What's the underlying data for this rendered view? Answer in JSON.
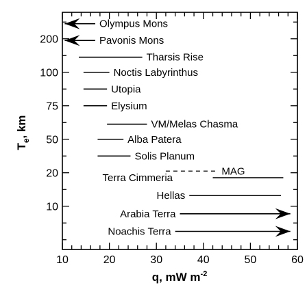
{
  "chart_data": {
    "type": "range-bar",
    "xlabel": "q, mW m",
    "xlabel_sup": "-2",
    "ylabel": "T",
    "ylabel_sub": "e",
    "ylabel_unit": ", km",
    "xlim": [
      10,
      60
    ],
    "x_ticks": [
      10,
      20,
      30,
      40,
      50,
      60
    ],
    "y_ticks": [
      {
        "row": 1.5,
        "label": "200"
      },
      {
        "row": 3.5,
        "label": "100"
      },
      {
        "row": 5.5,
        "label": "75"
      },
      {
        "row": 7.5,
        "label": "50"
      },
      {
        "row": 9.5,
        "label": "20"
      },
      {
        "row": 11.5,
        "label": "10"
      }
    ],
    "rows": [
      {
        "name": "Olympus Mons",
        "row": 0.6,
        "q_min": 10.5,
        "q_max": 17,
        "arrow": "left"
      },
      {
        "name": "Pavonis Mons",
        "row": 1.6,
        "q_min": 10.5,
        "q_max": 17,
        "arrow": "left"
      },
      {
        "name": "Tharsis Rise",
        "row": 2.6,
        "q_min": 13.5,
        "q_max": 27,
        "arrow": "none"
      },
      {
        "name": "Noctis  Labyrinthus",
        "row": 3.5,
        "q_min": 14.5,
        "q_max": 20,
        "arrow": "none"
      },
      {
        "name": "Utopia",
        "row": 4.5,
        "q_min": 14.5,
        "q_max": 19.5,
        "arrow": "none"
      },
      {
        "name": "Elysium",
        "row": 5.5,
        "q_min": 14.5,
        "q_max": 19.5,
        "arrow": "none"
      },
      {
        "name": "VM/Melas Chasma",
        "row": 6.6,
        "q_min": 19.5,
        "q_max": 28,
        "arrow": "none"
      },
      {
        "name": "Alba Patera",
        "row": 7.5,
        "q_min": 17.5,
        "q_max": 23,
        "arrow": "none"
      },
      {
        "name": "Solis Planum",
        "row": 8.5,
        "q_min": 17.5,
        "q_max": 24.5,
        "arrow": "none"
      },
      {
        "name": "Terra Cimmeria",
        "row": 9.8,
        "q_min": 42,
        "q_max": 57,
        "arrow": "none",
        "label_x": 26
      },
      {
        "name": "Hellas",
        "row": 10.85,
        "q_min": 37,
        "q_max": 56.5,
        "arrow": "none"
      },
      {
        "name": "Arabia Terra",
        "row": 11.95,
        "q_min": 35,
        "q_max": 58.5,
        "arrow": "right"
      },
      {
        "name": "Noachis Terra",
        "row": 13.0,
        "q_min": 34,
        "q_max": 58.5,
        "arrow": "right"
      }
    ],
    "annotations": [
      {
        "text": "MAG",
        "row": 9.4,
        "q_from": 32,
        "q_to": 43,
        "style": "dashed"
      }
    ]
  }
}
